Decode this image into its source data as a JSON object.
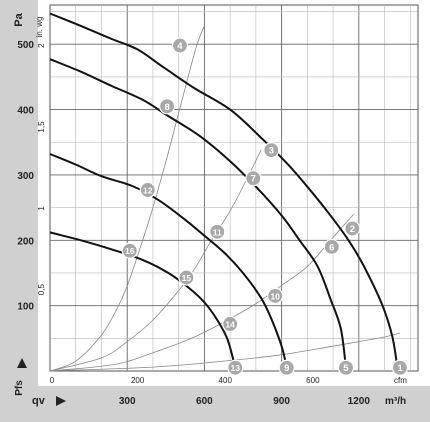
{
  "chart_data": {
    "type": "line",
    "title": "",
    "y_axis_left": {
      "label": "Pa",
      "label_bottom": "Pfs",
      "range": [
        0,
        560
      ],
      "ticks": [
        100,
        200,
        300,
        400,
        500
      ]
    },
    "y_axis_inner": {
      "label": "in. wg",
      "range": [
        0,
        2.25
      ],
      "ticks": [
        "0,5",
        "1",
        "1,5",
        "2"
      ],
      "tick_values": [
        0.5,
        1,
        1.5,
        2
      ]
    },
    "x_axis_bottom": {
      "label": "qv",
      "unit": "m³/h",
      "range": [
        0,
        1430
      ],
      "ticks": [
        300,
        600,
        900,
        1200
      ]
    },
    "x_axis_inner": {
      "unit": "cfm",
      "range": [
        0,
        840
      ],
      "ticks": [
        0,
        200,
        400,
        600,
        800
      ],
      "tick_labels": [
        "0",
        "200",
        "400",
        "600",
        "cfm"
      ]
    },
    "grid": true,
    "fan_curves": [
      {
        "name": "",
        "points": [
          [
            0,
            547
          ],
          [
            120,
            528
          ],
          [
            240,
            508
          ],
          [
            340,
            492
          ],
          [
            440,
            465
          ],
          [
            560,
            433
          ],
          [
            700,
            400
          ],
          [
            820,
            357
          ],
          [
            920,
            318
          ],
          [
            1000,
            282
          ],
          [
            1080,
            243
          ],
          [
            1160,
            200
          ],
          [
            1220,
            160
          ],
          [
            1290,
            102
          ],
          [
            1330,
            53
          ],
          [
            1350,
            5
          ]
        ]
      },
      {
        "name": "",
        "points": [
          [
            0,
            477
          ],
          [
            120,
            458
          ],
          [
            240,
            436
          ],
          [
            360,
            415
          ],
          [
            460,
            390
          ],
          [
            580,
            360
          ],
          [
            700,
            321
          ],
          [
            800,
            282
          ],
          [
            900,
            238
          ],
          [
            970,
            200
          ],
          [
            1040,
            160
          ],
          [
            1090,
            110
          ],
          [
            1130,
            65
          ],
          [
            1150,
            5
          ]
        ]
      },
      {
        "name": "",
        "points": [
          [
            0,
            332
          ],
          [
            100,
            316
          ],
          [
            200,
            298
          ],
          [
            320,
            283
          ],
          [
            420,
            262
          ],
          [
            520,
            233
          ],
          [
            600,
            207
          ],
          [
            680,
            180
          ],
          [
            750,
            150
          ],
          [
            820,
            112
          ],
          [
            860,
            80
          ],
          [
            900,
            38
          ],
          [
            920,
            5
          ]
        ]
      },
      {
        "name": "",
        "points": [
          [
            0,
            212
          ],
          [
            120,
            200
          ],
          [
            240,
            186
          ],
          [
            360,
            170
          ],
          [
            460,
            150
          ],
          [
            540,
            127
          ],
          [
            600,
            105
          ],
          [
            650,
            78
          ],
          [
            690,
            48
          ],
          [
            720,
            5
          ]
        ]
      }
    ],
    "system_curves": [
      {
        "name": "",
        "points": [
          [
            0,
            0
          ],
          [
            100,
            15
          ],
          [
            200,
            55
          ],
          [
            260,
            95
          ],
          [
            300,
            130
          ],
          [
            350,
            188
          ],
          [
            400,
            250
          ],
          [
            450,
            320
          ],
          [
            490,
            380
          ],
          [
            530,
            440
          ],
          [
            570,
            498
          ],
          [
            600,
            528
          ]
        ]
      },
      {
        "name": "",
        "points": [
          [
            0,
            0
          ],
          [
            200,
            20
          ],
          [
            300,
            45
          ],
          [
            400,
            78
          ],
          [
            500,
            123
          ],
          [
            560,
            155
          ],
          [
            620,
            195
          ],
          [
            700,
            245
          ],
          [
            760,
            290
          ],
          [
            820,
            338
          ]
        ]
      },
      {
        "name": "",
        "points": [
          [
            0,
            0
          ],
          [
            250,
            10
          ],
          [
            400,
            28
          ],
          [
            550,
            50
          ],
          [
            700,
            80
          ],
          [
            800,
            103
          ],
          [
            900,
            131
          ],
          [
            1000,
            160
          ],
          [
            1090,
            200
          ],
          [
            1180,
            240
          ]
        ]
      },
      {
        "name": "",
        "points": [
          [
            0,
            0
          ],
          [
            400,
            6
          ],
          [
            700,
            16
          ],
          [
            900,
            25
          ],
          [
            1100,
            38
          ],
          [
            1200,
            45
          ],
          [
            1300,
            52
          ],
          [
            1360,
            58
          ]
        ]
      }
    ],
    "markers": [
      {
        "label": "1",
        "x": 1360,
        "y": 5
      },
      {
        "label": "2",
        "x": 1175,
        "y": 218
      },
      {
        "label": "3",
        "x": 860,
        "y": 338
      },
      {
        "label": "4",
        "x": 505,
        "y": 498
      },
      {
        "label": "5",
        "x": 1150,
        "y": 5
      },
      {
        "label": "6",
        "x": 1095,
        "y": 190
      },
      {
        "label": "7",
        "x": 790,
        "y": 295
      },
      {
        "label": "8",
        "x": 455,
        "y": 405
      },
      {
        "label": "9",
        "x": 920,
        "y": 5
      },
      {
        "label": "10",
        "x": 875,
        "y": 115
      },
      {
        "label": "11",
        "x": 650,
        "y": 213
      },
      {
        "label": "12",
        "x": 380,
        "y": 277
      },
      {
        "label": "13",
        "x": 720,
        "y": 5
      },
      {
        "label": "14",
        "x": 700,
        "y": 72
      },
      {
        "label": "15",
        "x": 530,
        "y": 143
      },
      {
        "label": "16",
        "x": 310,
        "y": 184
      }
    ]
  }
}
